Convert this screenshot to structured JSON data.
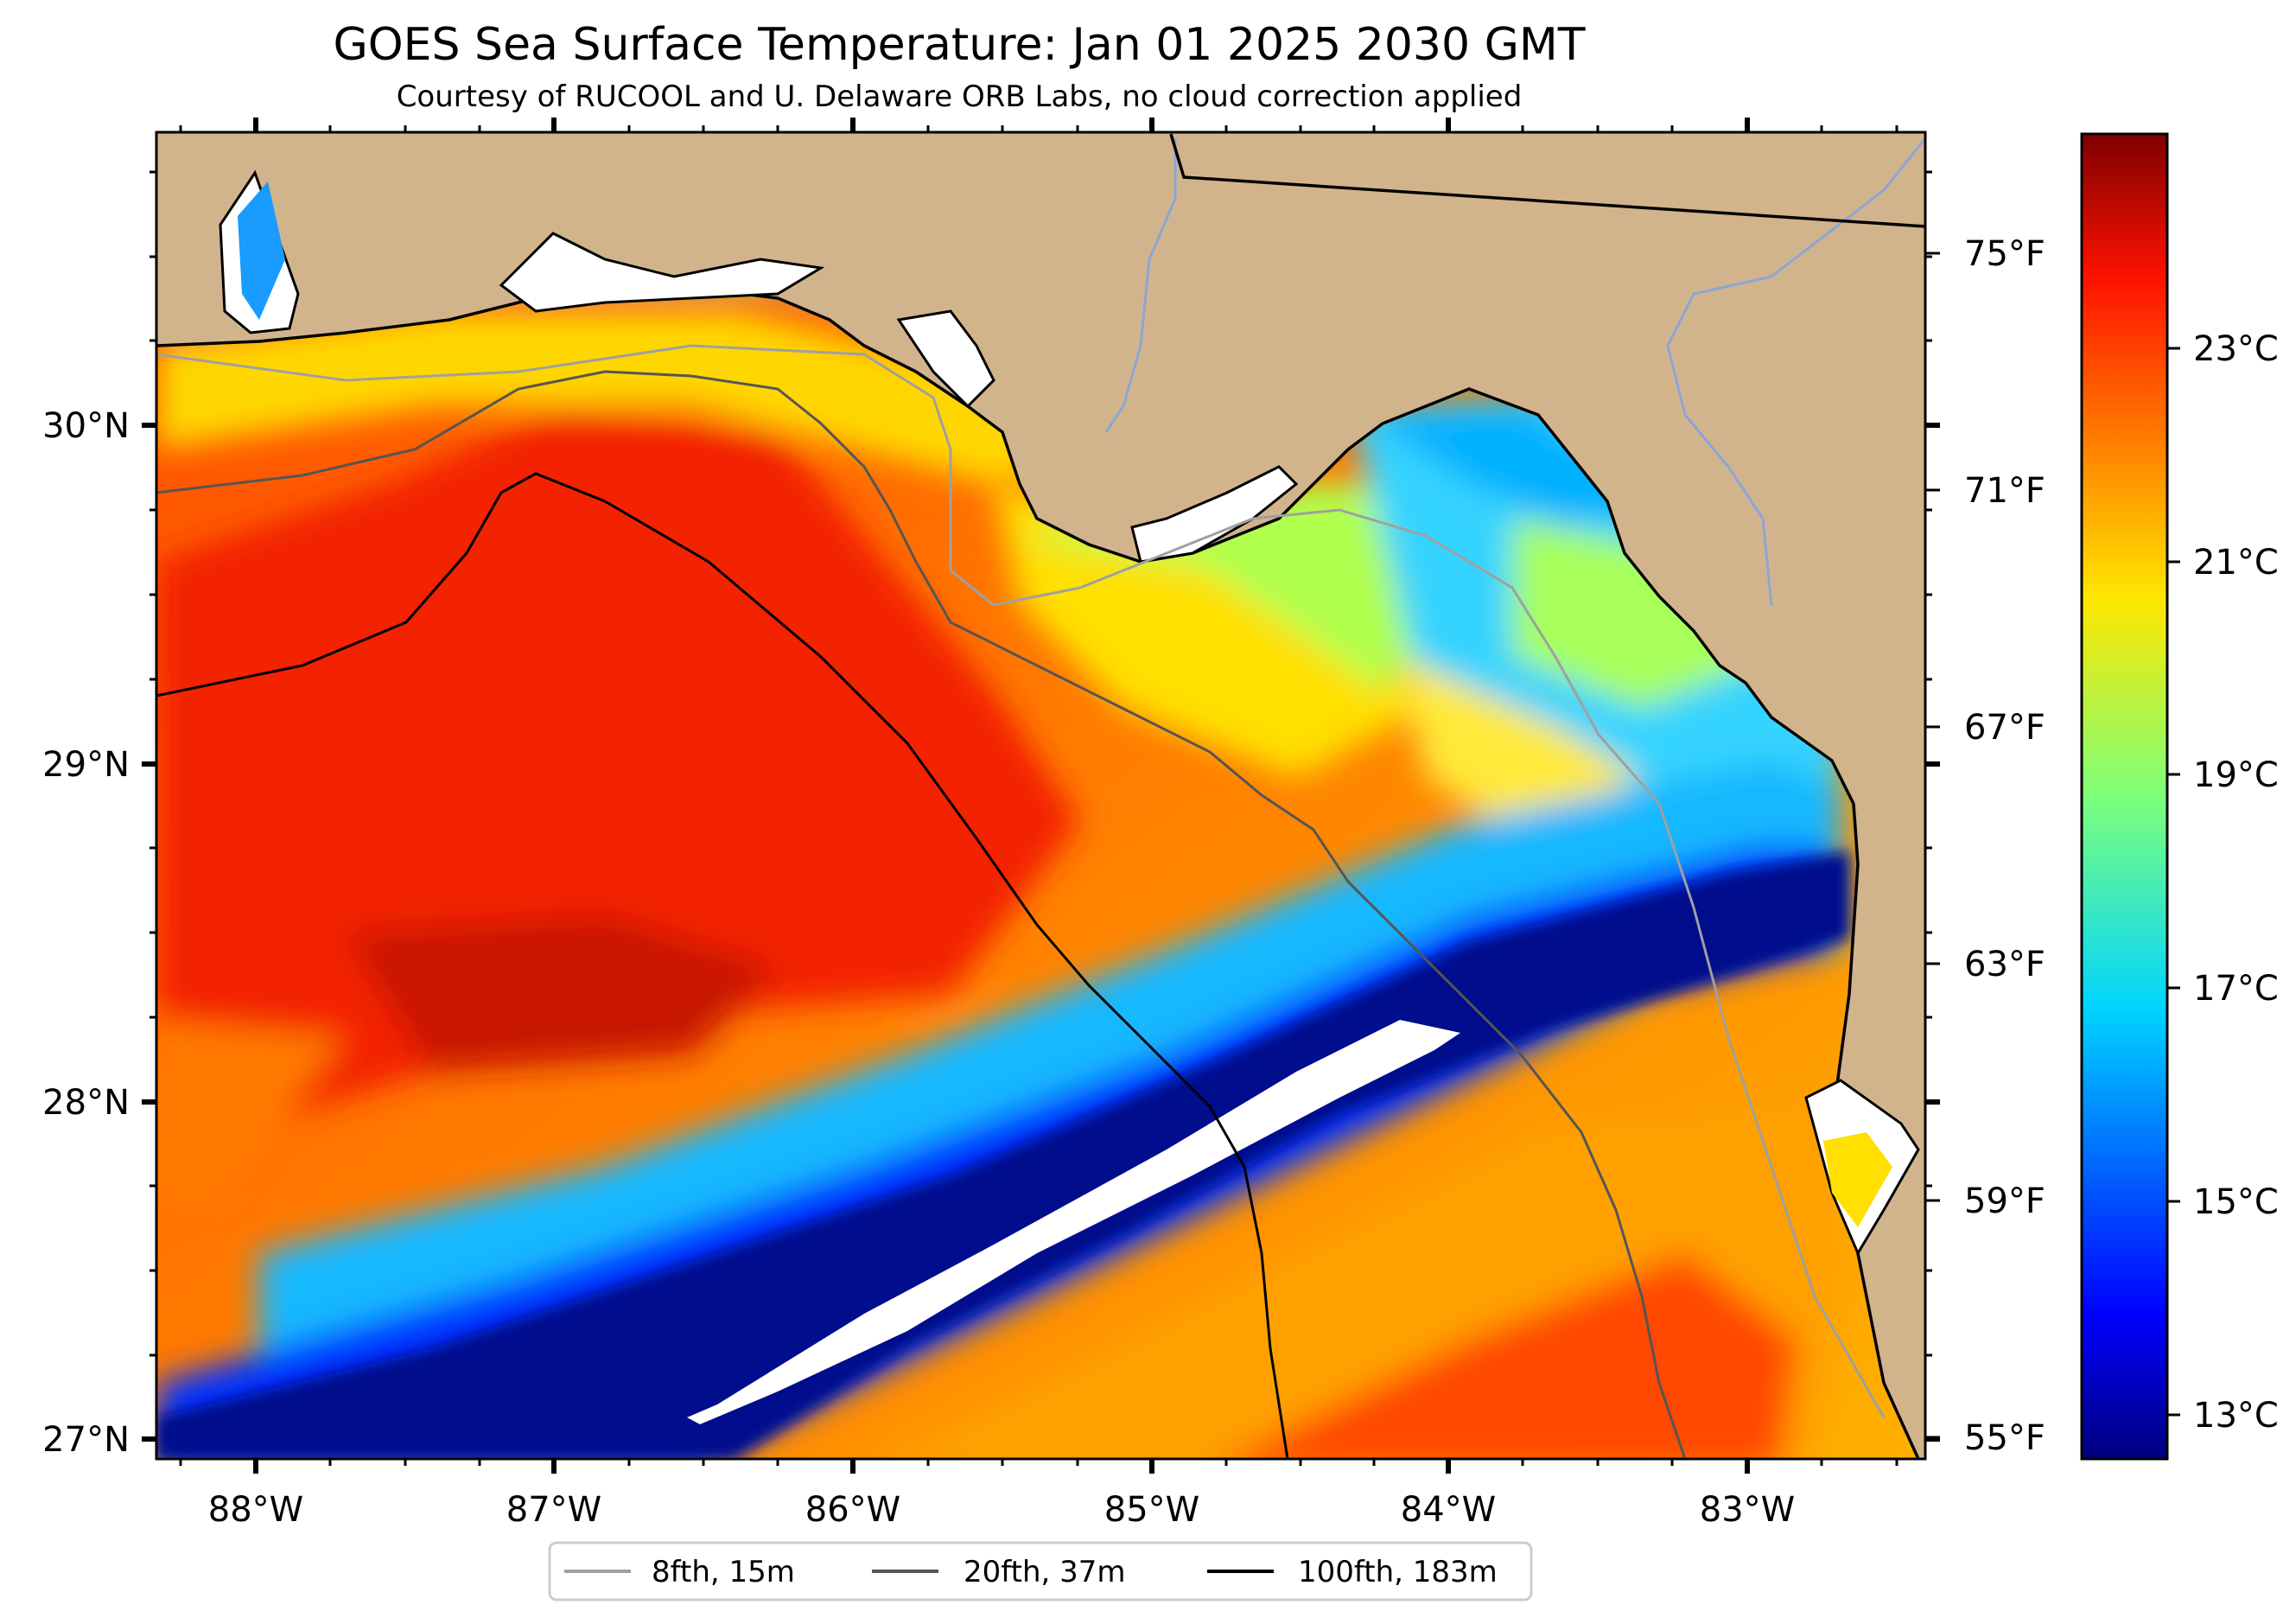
{
  "title": "GOES Sea Surface Temperature: Jan 01 2025 2030 GMT",
  "subtitle": "Courtesy of RUCOOL and U. Delaware ORB Labs, no cloud correction applied",
  "map": {
    "lon_labels": [
      "88°W",
      "87°W",
      "86°W",
      "85°W",
      "84°W",
      "83°W"
    ],
    "lat_labels": [
      "30°N",
      "29°N",
      "28°N",
      "27°N"
    ],
    "fahrenheit_labels": [
      "75°F",
      "71°F",
      "67°F",
      "63°F",
      "59°F",
      "55°F"
    ],
    "land_color": "#d2b48c",
    "colormap": "jet"
  },
  "colorbar": {
    "labels": [
      "23°C",
      "21°C",
      "19°C",
      "17°C",
      "15°C",
      "13°C"
    ]
  },
  "legend": {
    "items": [
      {
        "label": "8fth, 15m",
        "color": "#a0a0a0"
      },
      {
        "label": "20fth, 37m",
        "color": "#555555"
      },
      {
        "label": "100fth, 183m",
        "color": "#000000"
      }
    ]
  }
}
